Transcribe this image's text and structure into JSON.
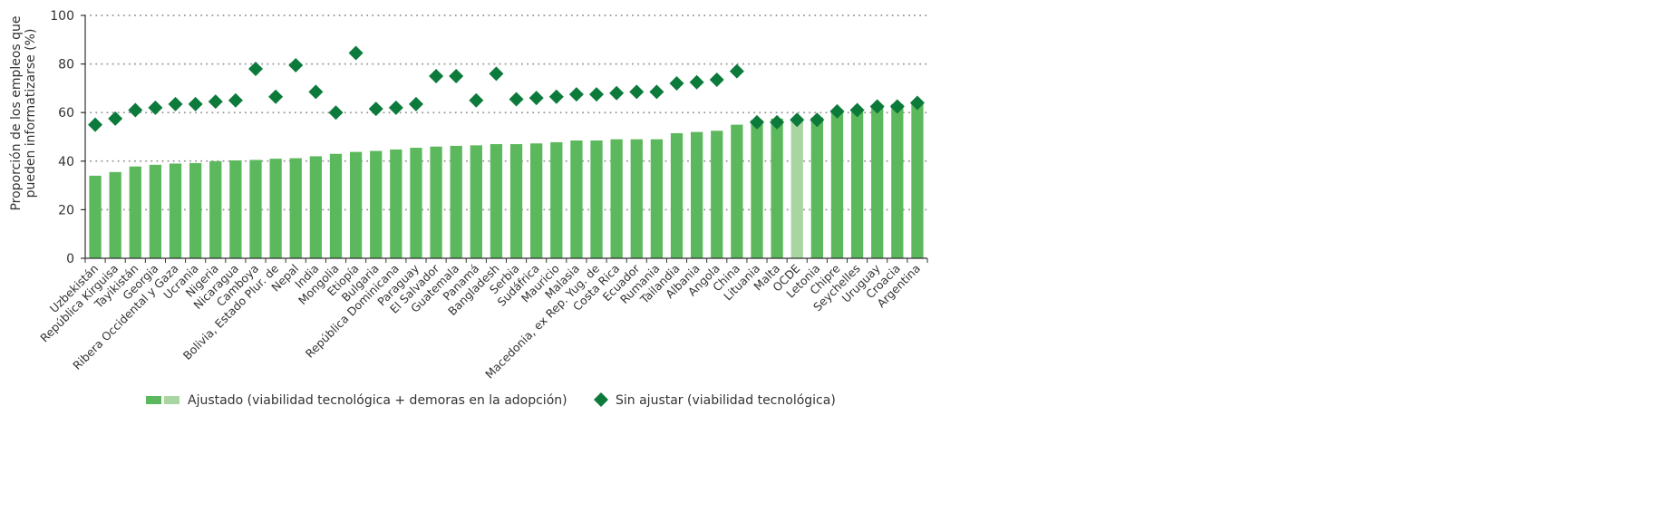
{
  "chart_data": {
    "type": "bar",
    "ylabel_lines": [
      "Proporción de los empleos que",
      "pueden informatizarse (%)"
    ],
    "ylim": [
      0,
      100
    ],
    "yticks": [
      0,
      20,
      40,
      60,
      80,
      100
    ],
    "grid": "horizontal dotted",
    "legend_position": "bottom",
    "colors": {
      "adjusted": "#5cb85c",
      "adjusted_highlight": "#a8d5a0",
      "unadjusted": "#0b7a3b",
      "axis": "#333333",
      "grid": "#999999"
    },
    "highlight_category": "OCDE",
    "categories": [
      "Uzbekistán",
      "República Kirguisa",
      "Tayikistán",
      "Georgia",
      "Ribera Occidental y Gaza",
      "Ucrania",
      "Nigeria",
      "Nicaragua",
      "Camboya",
      "Bolivia, Estado Plur. de",
      "Nepal",
      "India",
      "Mongolia",
      "Etiopía",
      "Bulgaria",
      "República Dominicana",
      "Paraguay",
      "El Salvador",
      "Guatemala",
      "Panamá",
      "Bangladesh",
      "Serbia",
      "Sudáfrica",
      "Mauricio",
      "Malasia",
      "Macedonia, ex Rep. Yug. de",
      "Costa Rica",
      "Ecuador",
      "Rumania",
      "Tailandia",
      "Albania",
      "Angola",
      "China",
      "Lituania",
      "Malta",
      "OCDE",
      "Letonia",
      "Chipre",
      "Seychelles",
      "Uruguay",
      "Croacia",
      "Argentina"
    ],
    "series": [
      {
        "name": "Ajustado (viabilidad tecnológica + demoras en la adopción)",
        "marker": "bar",
        "values": [
          34,
          35.5,
          37.8,
          38.5,
          39,
          39.2,
          40,
          40.3,
          40.5,
          41,
          41.2,
          42,
          43,
          43.8,
          44.2,
          44.8,
          45.5,
          46,
          46.3,
          46.5,
          47,
          47,
          47.3,
          47.8,
          48.5,
          48.5,
          49,
          49,
          49,
          51.5,
          52,
          52.5,
          55,
          57,
          57.5,
          57,
          58,
          60,
          61.5,
          62.5,
          63.5,
          64.5
        ]
      },
      {
        "name": "Sin ajustar (viabilidad tecnológica)",
        "marker": "diamond",
        "values": [
          55,
          57.5,
          61,
          62,
          63.5,
          63.5,
          64.5,
          65,
          78,
          66.5,
          79.5,
          68.5,
          60,
          84.5,
          61.5,
          62,
          63.5,
          75,
          75,
          65,
          76,
          65.5,
          66,
          66.5,
          67.5,
          67.5,
          68,
          68.5,
          68.5,
          72,
          72.5,
          73.5,
          77,
          56,
          56,
          57,
          57,
          60.5,
          61,
          62.5,
          62.5,
          64
        ]
      }
    ]
  }
}
